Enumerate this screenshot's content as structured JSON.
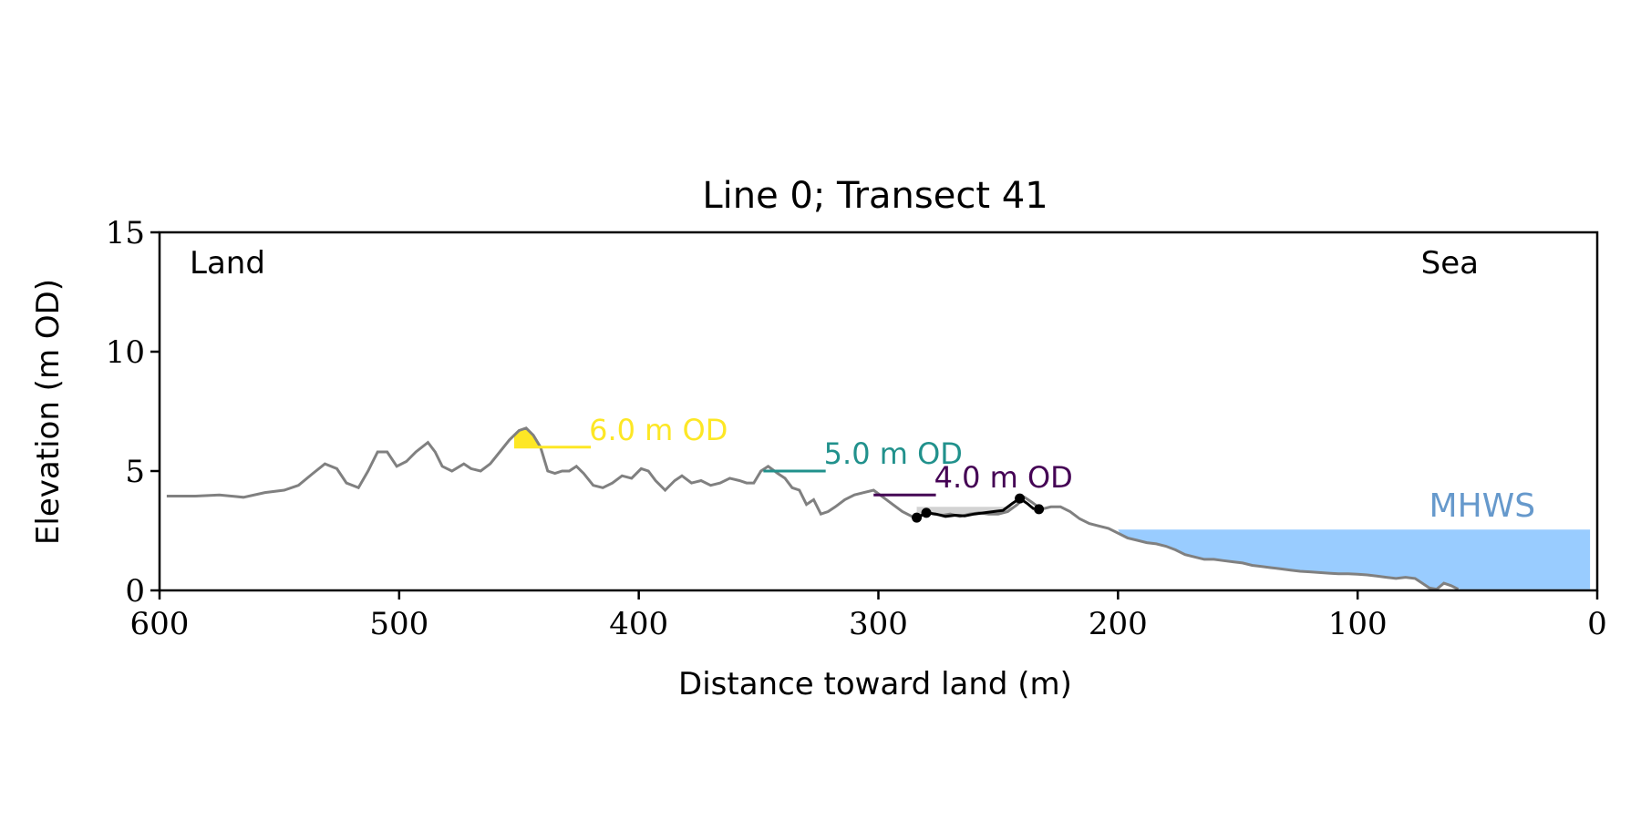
{
  "chart_data": {
    "type": "line",
    "title": "Line 0; Transect 41",
    "xlabel": "Distance toward land (m)",
    "ylabel": "Elevation (m OD)",
    "xlim": [
      600,
      0
    ],
    "ylim": [
      0,
      15
    ],
    "x_inverted": true,
    "xticks": [
      600,
      500,
      400,
      300,
      200,
      100,
      0
    ],
    "yticks": [
      0,
      5,
      10,
      15
    ],
    "grid": false,
    "corner_labels": {
      "left": "Land",
      "right": "Sea"
    },
    "profile": {
      "x": [
        597,
        585,
        575,
        565,
        556,
        548,
        542,
        536,
        531,
        526,
        522,
        517,
        513,
        509,
        505,
        501,
        497,
        493,
        488,
        485,
        482,
        478,
        473,
        470,
        466,
        462,
        458,
        454,
        450,
        447,
        444,
        441,
        438,
        435,
        432,
        429,
        426,
        423,
        419,
        415,
        411,
        407,
        403,
        399,
        396,
        393,
        389,
        385,
        382,
        378,
        374,
        370,
        366,
        362,
        358,
        355,
        352,
        349,
        346,
        342,
        339,
        336,
        333,
        330,
        327,
        324,
        321,
        318,
        314,
        310,
        306,
        302,
        298,
        294,
        290,
        286,
        283,
        280,
        277,
        273,
        270,
        266,
        262,
        258,
        254,
        250,
        246,
        242,
        239,
        236,
        232,
        228,
        224,
        220,
        216,
        212,
        208,
        204,
        200,
        196,
        192,
        188,
        184,
        180,
        176,
        172,
        168,
        164,
        160,
        156,
        152,
        148,
        144,
        140,
        136,
        132,
        128,
        124,
        120,
        116,
        112,
        108,
        104,
        100,
        96,
        92,
        88,
        84,
        80,
        76,
        73,
        70,
        67,
        64,
        61,
        58
      ],
      "y": [
        3.95,
        3.95,
        4.0,
        3.9,
        4.1,
        4.2,
        4.4,
        4.9,
        5.3,
        5.1,
        4.5,
        4.3,
        5.0,
        5.8,
        5.8,
        5.2,
        5.4,
        5.8,
        6.2,
        5.8,
        5.2,
        5.0,
        5.3,
        5.1,
        5.0,
        5.3,
        5.8,
        6.3,
        6.7,
        6.8,
        6.5,
        6.0,
        5.0,
        4.9,
        5.0,
        5.0,
        5.2,
        4.9,
        4.4,
        4.3,
        4.5,
        4.8,
        4.7,
        5.1,
        5.0,
        4.6,
        4.2,
        4.6,
        4.8,
        4.5,
        4.6,
        4.4,
        4.5,
        4.7,
        4.6,
        4.5,
        4.5,
        5.0,
        5.2,
        4.9,
        4.7,
        4.3,
        4.2,
        3.6,
        3.8,
        3.2,
        3.3,
        3.5,
        3.8,
        4.0,
        4.1,
        4.2,
        3.9,
        3.6,
        3.3,
        3.1,
        3.05,
        3.3,
        3.2,
        3.15,
        3.2,
        3.1,
        3.2,
        3.25,
        3.2,
        3.2,
        3.3,
        3.6,
        3.9,
        3.7,
        3.4,
        3.5,
        3.5,
        3.3,
        3.0,
        2.8,
        2.7,
        2.6,
        2.4,
        2.2,
        2.1,
        2.0,
        1.95,
        1.85,
        1.7,
        1.5,
        1.4,
        1.3,
        1.3,
        1.25,
        1.2,
        1.15,
        1.05,
        1.0,
        0.95,
        0.9,
        0.85,
        0.8,
        0.78,
        0.75,
        0.72,
        0.7,
        0.7,
        0.68,
        0.65,
        0.6,
        0.55,
        0.5,
        0.55,
        0.5,
        0.3,
        0.1,
        0.05,
        0.3,
        0.2,
        0.05
      ],
      "color": "#808080"
    },
    "highlight_segment": {
      "x": [
        284,
        280,
        276,
        272,
        268,
        264,
        260,
        256,
        252,
        248,
        244,
        241,
        238,
        235
      ],
      "y": [
        3.05,
        3.25,
        3.2,
        3.1,
        3.15,
        3.12,
        3.2,
        3.25,
        3.3,
        3.35,
        3.65,
        3.85,
        3.65,
        3.4
      ],
      "points_x": [
        284,
        280,
        241,
        233
      ],
      "points_y": [
        3.05,
        3.25,
        3.85,
        3.4
      ],
      "color": "#000000"
    },
    "thresholds": [
      {
        "label": "6.0 m OD",
        "y": 6.0,
        "x_start": 452,
        "x_end": 420,
        "color": "#fde725"
      },
      {
        "label": "5.0 m OD",
        "y": 5.0,
        "x_start": 348,
        "x_end": 322,
        "color": "#21918c"
      },
      {
        "label": "4.0 m OD",
        "y": 4.0,
        "x_start": 302,
        "x_end": 276,
        "color": "#440154"
      }
    ],
    "mhws": {
      "label": "MHWS",
      "y": 2.55,
      "x_start": 200,
      "x_end": 3,
      "color": "#99ccff",
      "label_color": "#6699cc"
    }
  }
}
